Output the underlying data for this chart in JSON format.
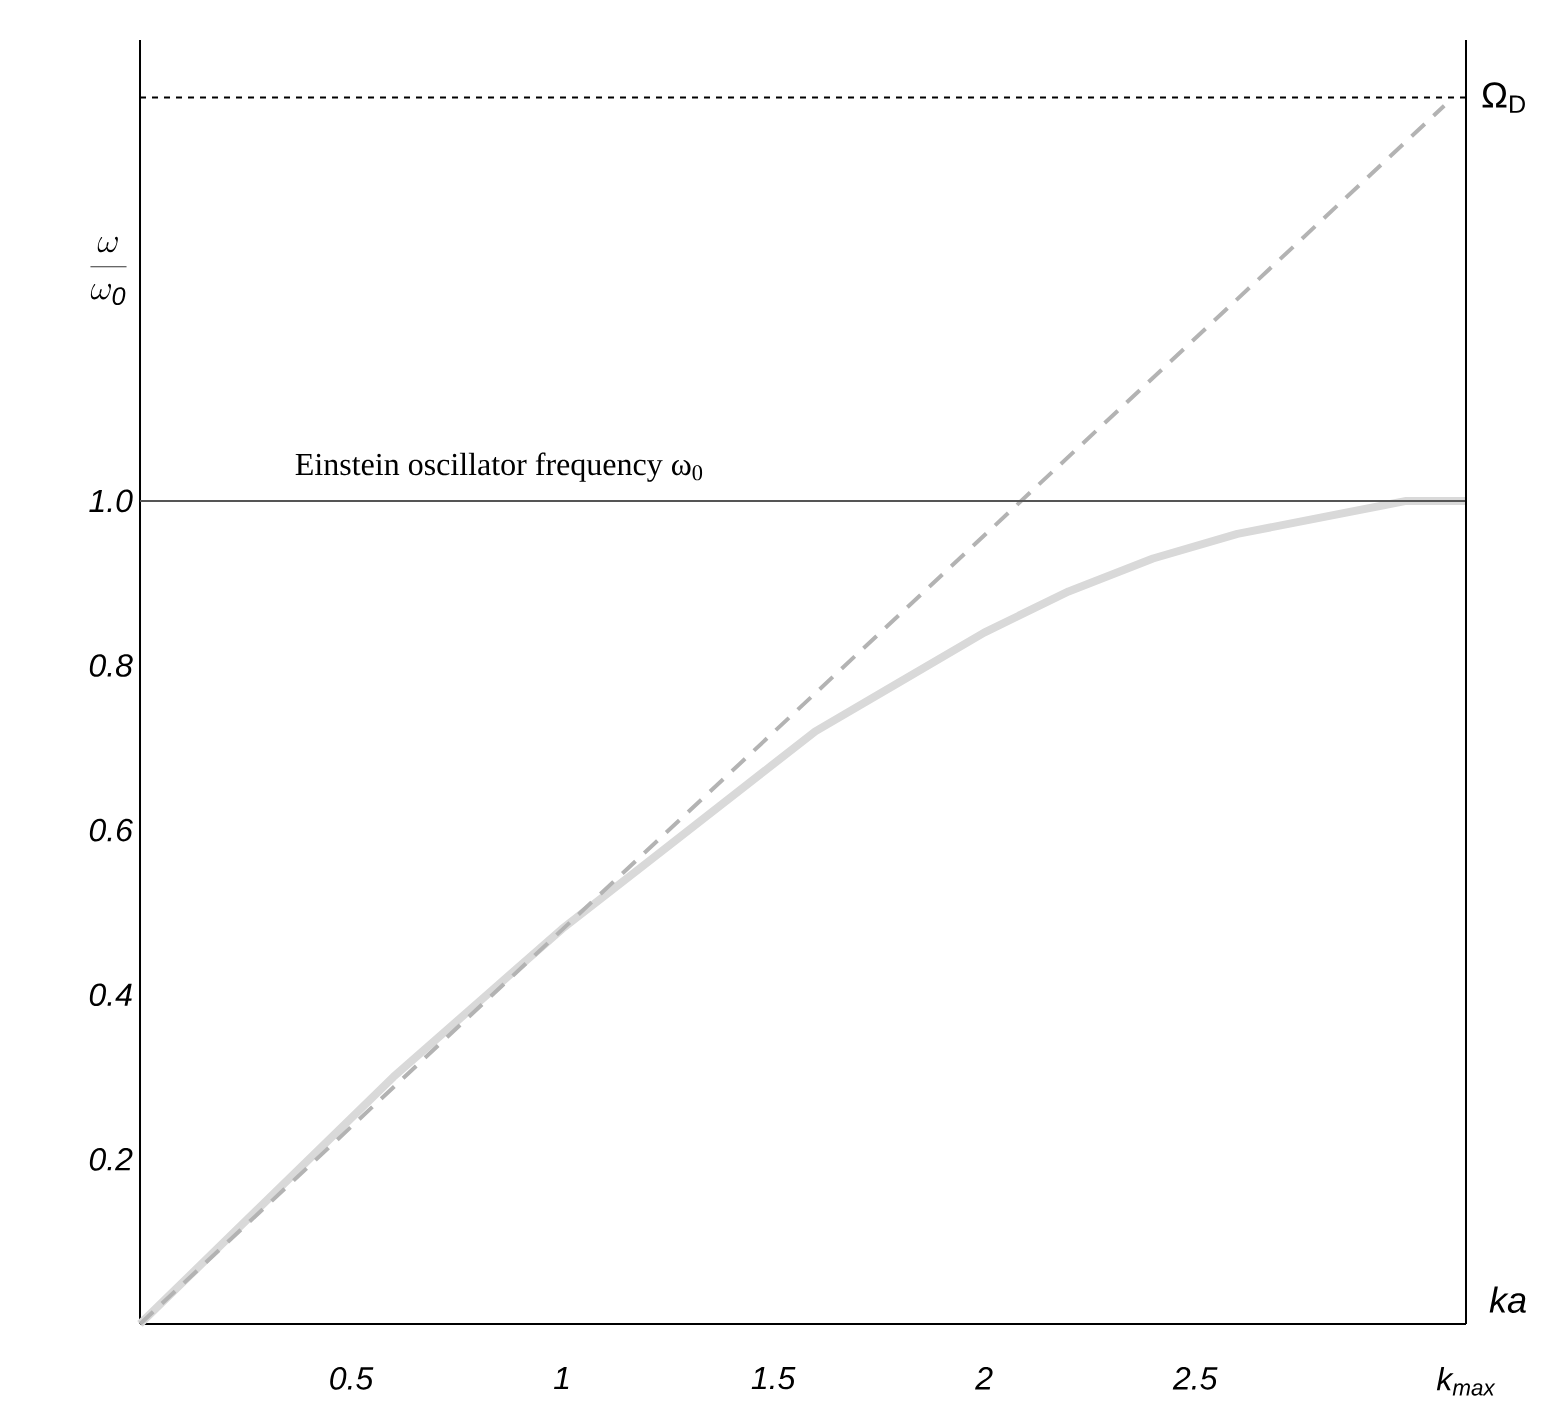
{
  "chart_data": {
    "type": "line",
    "xlabel": "ka",
    "ylabel": "\\frac{\\omega}{\\omega_{\\mathit{0}}}",
    "xlim": [
      0,
      3.1416
    ],
    "ylim": [
      0,
      1.56
    ],
    "xticks": [
      0.5,
      1,
      1.5,
      2,
      2.5,
      {
        "value": 3.1416,
        "label": "k$_{max}$"
      }
    ],
    "yticks": [
      0.2,
      0.4,
      0.6,
      0.8,
      "1.0"
    ],
    "series": [
      {
        "color": "#d9d9d9",
        "line_style": "solid",
        "x": [
          0,
          0.2,
          0.4,
          0.6,
          0.8,
          1.0,
          1.2,
          1.4,
          1.6,
          1.8,
          2.0,
          2.2,
          2.4,
          2.6,
          2.8,
          3.0,
          3.1416
        ],
        "values": [
          0,
          0.1,
          0.2,
          0.3,
          0.39,
          0.48,
          0.56,
          0.64,
          0.72,
          0.78,
          0.84,
          0.89,
          0.93,
          0.96,
          0.98,
          1.0,
          1.0
        ]
      },
      {
        "color": "#b3b3b3",
        "line_style": "dashed",
        "x": [
          0,
          3.09
        ],
        "values": [
          0,
          1.48
        ]
      }
    ],
    "ref_lines": [
      {
        "axis": "y",
        "value": 1.0,
        "label": "Einstein oscillator frequency ω$_{0}$",
        "color": "#555555",
        "line_style": "solid"
      },
      {
        "axis": "y",
        "value": 1.49,
        "label": "Ω$_{D}$",
        "color": "#000000",
        "line_style": "dotted"
      },
      {
        "axis": "x",
        "value": 3.1416,
        "color": "#000000",
        "line_style": "solid"
      }
    ]
  }
}
